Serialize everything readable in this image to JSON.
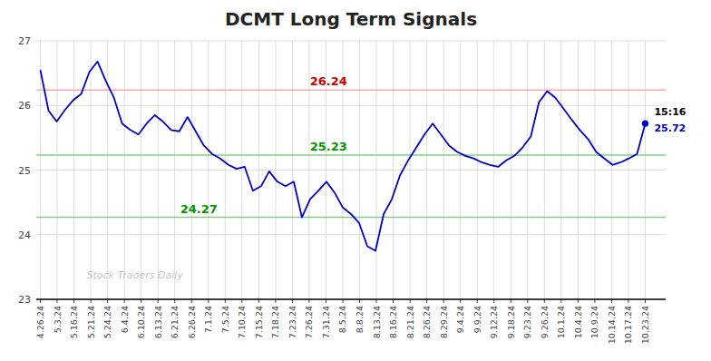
{
  "chart_data": {
    "type": "line",
    "title": "DCMT Long Term Signals",
    "color": "#0000cc",
    "grid": true,
    "ylim": [
      23,
      27
    ],
    "yticks": [
      23,
      24,
      25,
      26,
      27
    ],
    "xlim": [
      -0.5,
      76.5
    ],
    "xticks": [
      {
        "value": 0,
        "label": "4.26.24"
      },
      {
        "value": 2.0556,
        "label": "5.3.24"
      },
      {
        "value": 4.1111,
        "label": "5.16.24"
      },
      {
        "value": 6.1667,
        "label": "5.21.24"
      },
      {
        "value": 8.2222,
        "label": "5.24.24"
      },
      {
        "value": 10.2778,
        "label": "6.4.24"
      },
      {
        "value": 12.3333,
        "label": "6.10.24"
      },
      {
        "value": 14.3889,
        "label": "6.13.24"
      },
      {
        "value": 16.4444,
        "label": "6.21.24"
      },
      {
        "value": 18.5,
        "label": "6.26.24"
      },
      {
        "value": 20.5556,
        "label": "7.1.24"
      },
      {
        "value": 22.6111,
        "label": "7.5.24"
      },
      {
        "value": 24.6667,
        "label": "7.10.24"
      },
      {
        "value": 26.7222,
        "label": "7.15.24"
      },
      {
        "value": 28.7778,
        "label": "7.18.24"
      },
      {
        "value": 30.8333,
        "label": "7.23.24"
      },
      {
        "value": 32.8889,
        "label": "7.26.24"
      },
      {
        "value": 34.9444,
        "label": "7.31.24"
      },
      {
        "value": 37,
        "label": "8.5.24"
      },
      {
        "value": 39.0556,
        "label": "8.8.24"
      },
      {
        "value": 41.1111,
        "label": "8.13.24"
      },
      {
        "value": 43.1667,
        "label": "8.16.24"
      },
      {
        "value": 45.2222,
        "label": "8.21.24"
      },
      {
        "value": 47.2778,
        "label": "8.26.24"
      },
      {
        "value": 49.3333,
        "label": "8.29.24"
      },
      {
        "value": 51.3889,
        "label": "9.4.24"
      },
      {
        "value": 53.4444,
        "label": "9.9.24"
      },
      {
        "value": 55.5,
        "label": "9.12.24"
      },
      {
        "value": 57.5556,
        "label": "9.18.24"
      },
      {
        "value": 59.6111,
        "label": "9.23.24"
      },
      {
        "value": 61.6667,
        "label": "9.26.24"
      },
      {
        "value": 63.7222,
        "label": "10.1.24"
      },
      {
        "value": 65.7778,
        "label": "10.4.24"
      },
      {
        "value": 67.8333,
        "label": "10.9.24"
      },
      {
        "value": 69.8889,
        "label": "10.14.24"
      },
      {
        "value": 71.9444,
        "label": "10.17.24"
      },
      {
        "value": 74,
        "label": "10.23.24"
      }
    ],
    "values": [
      26.55,
      25.92,
      25.75,
      25.93,
      26.08,
      26.18,
      26.52,
      26.68,
      26.38,
      26.12,
      25.72,
      25.62,
      25.55,
      25.72,
      25.85,
      25.75,
      25.62,
      25.6,
      25.82,
      25.6,
      25.38,
      25.25,
      25.18,
      25.08,
      25.02,
      25.05,
      24.68,
      24.75,
      24.98,
      24.82,
      24.75,
      24.82,
      24.27,
      24.55,
      24.68,
      24.82,
      24.65,
      24.42,
      24.32,
      24.18,
      23.82,
      23.75,
      24.32,
      24.55,
      24.92,
      25.15,
      25.35,
      25.55,
      25.72,
      25.55,
      25.38,
      25.28,
      25.22,
      25.18,
      25.12,
      25.08,
      25.05,
      25.15,
      25.22,
      25.35,
      25.52,
      26.05,
      26.22,
      26.12,
      25.95,
      25.78,
      25.62,
      25.48,
      25.28,
      25.18,
      25.08,
      25.12,
      25.18,
      25.25,
      25.72
    ],
    "hlines": [
      {
        "value": 26.24,
        "label": "26.24",
        "color": "#ffaaaa",
        "label_color": "#cc0000"
      },
      {
        "value": 25.23,
        "label": "25.23",
        "color": "#88cc88",
        "label_color": "#009900"
      },
      {
        "value": 24.27,
        "label": "24.27",
        "color": "#88cc88",
        "label_color": "#009900"
      }
    ],
    "end_labels": [
      {
        "text": "15:16",
        "color": "#000000"
      },
      {
        "text": "25.72",
        "color": "#0000cc"
      }
    ],
    "watermark": "Stock Traders Daily"
  }
}
